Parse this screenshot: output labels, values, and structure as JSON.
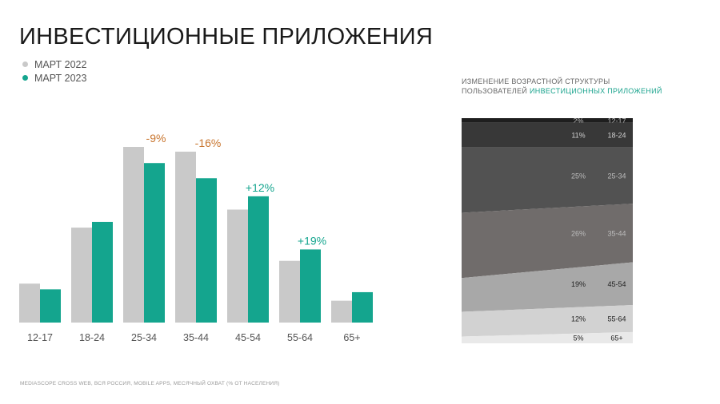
{
  "page": {
    "title": "ИНВЕСТИЦИОННЫЕ ПРИЛОЖЕНИЯ",
    "source": "MEDIASCOPE CROSS WEB, ВСЯ РОССИЯ, MOBILE APPS, МЕСЯЧНЫЙ ОХВАТ (% ОТ НАСЕЛЕНИЯ)"
  },
  "legend": [
    {
      "label": "МАРТ 2022",
      "color": "#c9c9c9"
    },
    {
      "label": "МАРТ 2023",
      "color": "#14a58e"
    }
  ],
  "right_title": {
    "line1": "ИЗМЕНЕНИЕ ВОЗРАСТНОЙ СТРУКТУРЫ",
    "line2_prefix": "ПОЛЬЗОВАТЕЛЕЙ ",
    "line2_accent": "ИНВЕСТИЦИОННЫХ ПРИЛОЖЕНИЙ"
  },
  "colors": {
    "gray_bar": "#c9c9c9",
    "teal_bar": "#14a58e",
    "negative_label": "#c8752e",
    "positive_label": "#14a58e",
    "axis_text": "#555555"
  },
  "chart_data": [
    {
      "type": "bar",
      "categories": [
        "12-17",
        "18-24",
        "25-34",
        "35-44",
        "45-54",
        "55-64",
        "65+"
      ],
      "series": [
        {
          "name": "МАРТ 2022",
          "values": [
            4.1,
            10.0,
            18.5,
            18.0,
            11.9,
            6.5,
            2.3
          ]
        },
        {
          "name": "МАРТ 2023",
          "values": [
            3.5,
            10.6,
            16.8,
            15.2,
            13.3,
            7.7,
            3.2
          ]
        }
      ],
      "annotations": [
        {
          "category": "25-34",
          "text": "-9%",
          "sign": "negative"
        },
        {
          "category": "35-44",
          "text": "-16%",
          "sign": "negative"
        },
        {
          "category": "45-54",
          "text": "+12%",
          "sign": "positive"
        },
        {
          "category": "55-64",
          "text": "+19%",
          "sign": "positive"
        }
      ],
      "ylim": [
        0,
        20
      ],
      "grid": false
    },
    {
      "type": "area",
      "stacked": true,
      "percent": true,
      "categories": [
        "12-17",
        "18-24",
        "25-34",
        "35-44",
        "45-54",
        "55-64",
        "65+"
      ],
      "series": [
        {
          "name": "МАРТ 2022",
          "values": [
            2,
            11,
            29,
            29,
            15,
            11,
            3
          ]
        },
        {
          "name": "МАРТ 2023",
          "values": [
            2,
            11,
            25,
            26,
            19,
            12,
            5
          ]
        }
      ],
      "labels_2023": [
        "2%",
        "11%",
        "25%",
        "26%",
        "19%",
        "12%",
        "5%"
      ],
      "fill_colors": [
        "#1e1e1e",
        "#383838",
        "#525252",
        "#706c6b",
        "#a8a8a8",
        "#d2d2d2",
        "#e9e9e9"
      ],
      "label_colors": [
        "#bdbdbd",
        "#cfcfcf",
        "#bdbdbd",
        "#bdbdbd",
        "#222222",
        "#222222",
        "#222222"
      ]
    }
  ]
}
